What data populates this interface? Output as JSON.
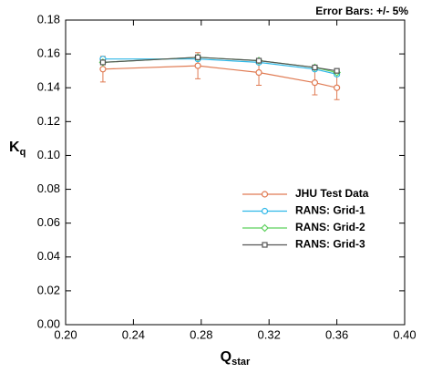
{
  "chart_data": {
    "type": "line",
    "annotation": "Error Bars:  +/- 5%",
    "xlabel": "Q",
    "xlabel_sub": "star",
    "ylabel": "K",
    "ylabel_sub": "q",
    "x": [
      0.222,
      0.278,
      0.314,
      0.347,
      0.36
    ],
    "series": [
      {
        "name": "JHU Test Data",
        "color": "#e07b53",
        "marker": "circle",
        "values": [
          0.151,
          0.153,
          0.149,
          0.143,
          0.14
        ],
        "errors": [
          0.0076,
          0.0077,
          0.0075,
          0.0072,
          0.007
        ]
      },
      {
        "name": "RANS:  Grid-1",
        "color": "#2fb8e8",
        "marker": "circle",
        "values": [
          0.157,
          0.157,
          0.155,
          0.151,
          0.148
        ]
      },
      {
        "name": "RANS:  Grid-2",
        "color": "#5cd05c",
        "marker": "diamond",
        "values": [
          0.155,
          0.158,
          0.156,
          0.152,
          0.149
        ]
      },
      {
        "name": "RANS:  Grid-3",
        "color": "#555555",
        "marker": "square",
        "values": [
          0.155,
          0.158,
          0.156,
          0.152,
          0.15
        ]
      }
    ],
    "xlim": [
      0.2,
      0.4
    ],
    "xticks": [
      {
        "value": 0.2,
        "label": "0.20"
      },
      0.24,
      0.28,
      0.32,
      0.36,
      {
        "value": 0.4,
        "label": "0.40"
      }
    ],
    "ylim": [
      0,
      0.18
    ],
    "yticks": [
      {
        "value": 0,
        "label": "0.00"
      },
      0.02,
      0.04,
      0.06,
      0.08,
      {
        "value": 0.1,
        "label": "0.10"
      },
      0.12,
      0.14,
      0.16,
      0.18
    ],
    "grid": false,
    "legend": "center-right"
  }
}
